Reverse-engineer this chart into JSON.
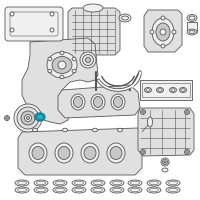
{
  "background_color": "#ffffff",
  "edge_color": "#555555",
  "highlight_color": "#00bcd4",
  "highlight_edge": "#007a99",
  "line_width": 0.6,
  "thin_lw": 0.4,
  "face_light": "#f0f0f0",
  "face_mid": "#e0e0e0",
  "face_dark": "#c8c8c8"
}
